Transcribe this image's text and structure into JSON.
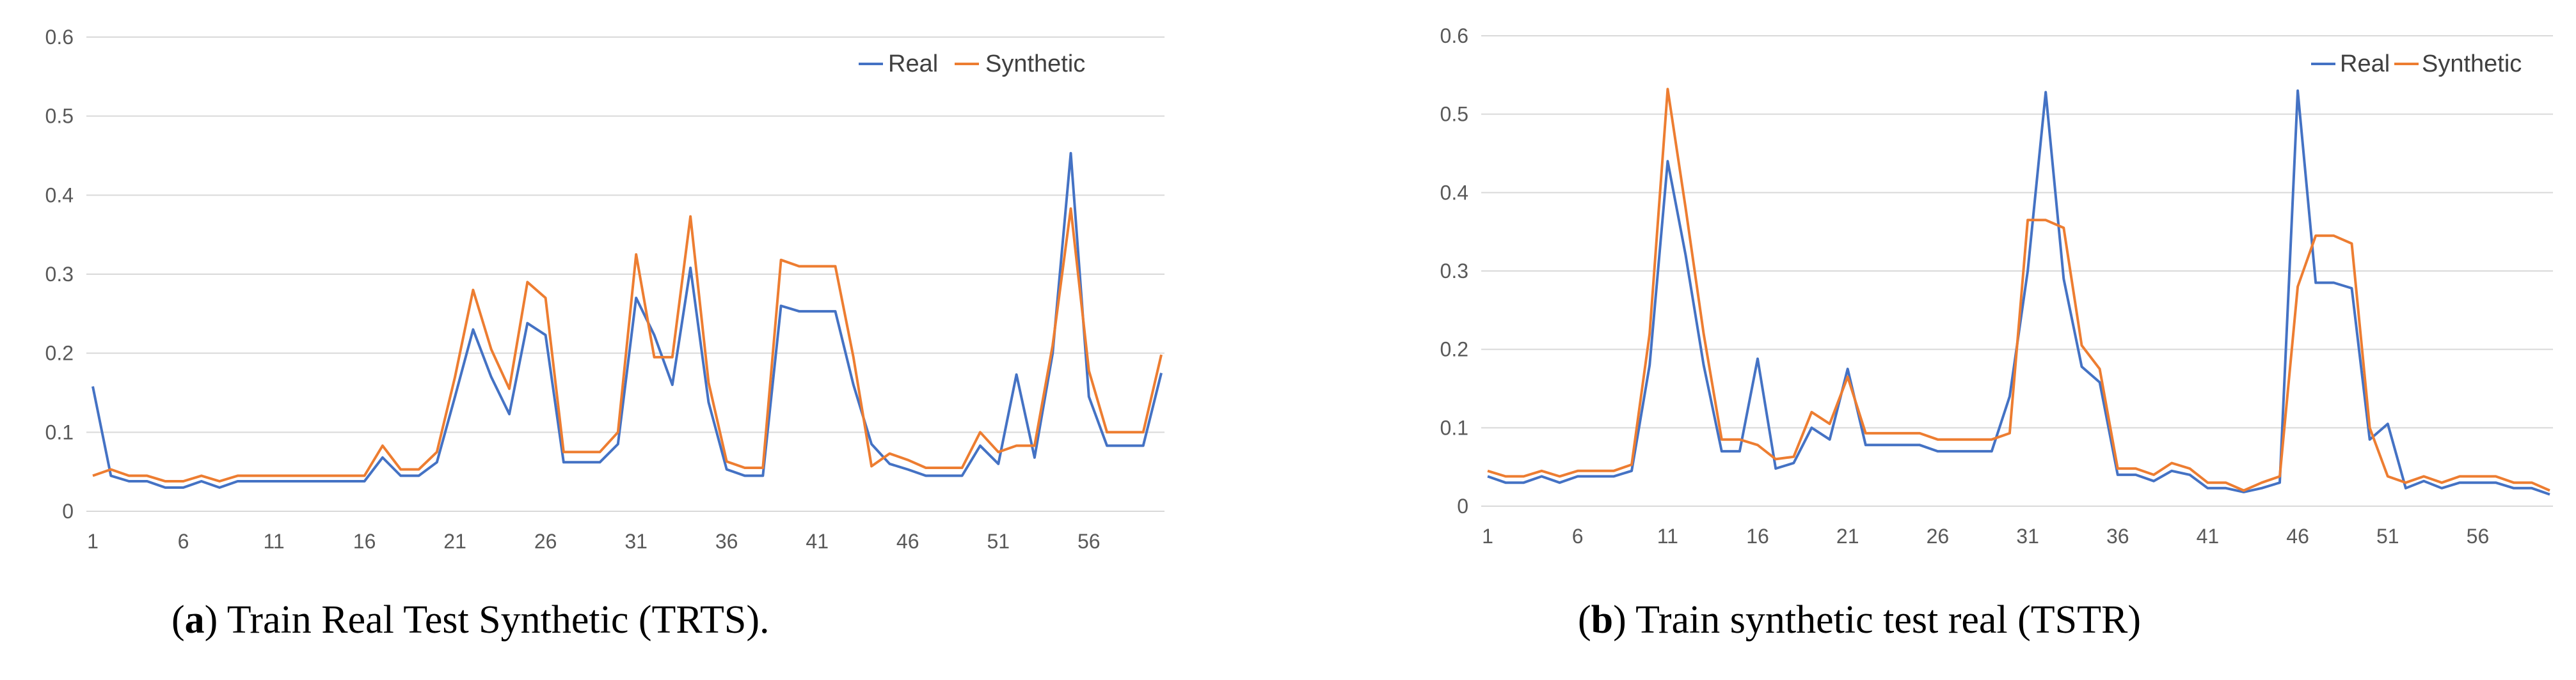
{
  "colors": {
    "real": "#4472c4",
    "synthetic": "#ed7d31",
    "grid": "#d9d9d9",
    "tick": "#595959"
  },
  "chart_data": [
    {
      "type": "line",
      "title": "",
      "xlabel": "",
      "ylabel": "",
      "ylim": [
        0,
        0.6
      ],
      "yticks": [
        "0",
        "0.1",
        "0.2",
        "0.3",
        "0.4",
        "0.5",
        "0.6"
      ],
      "xticks": [
        "1",
        "6",
        "11",
        "16",
        "21",
        "26",
        "31",
        "36",
        "41",
        "46",
        "51",
        "56"
      ],
      "legend_position": "top-right",
      "grid": true,
      "x": [
        1,
        2,
        3,
        4,
        5,
        6,
        7,
        8,
        9,
        10,
        11,
        12,
        13,
        14,
        15,
        16,
        17,
        18,
        19,
        20,
        21,
        22,
        23,
        24,
        25,
        26,
        27,
        28,
        29,
        30,
        31,
        32,
        33,
        34,
        35,
        36,
        37,
        38,
        39,
        40,
        41,
        42,
        43,
        44,
        45,
        46,
        47,
        48,
        49,
        50,
        51,
        52,
        53,
        54,
        55,
        56,
        57,
        58,
        59,
        60
      ],
      "series": [
        {
          "name": "Real",
          "values": [
            0.158,
            0.045,
            0.038,
            0.038,
            0.03,
            0.03,
            0.038,
            0.03,
            0.038,
            0.038,
            0.038,
            0.038,
            0.038,
            0.038,
            0.038,
            0.038,
            0.068,
            0.045,
            0.045,
            0.062,
            0.145,
            0.23,
            0.17,
            0.123,
            0.238,
            0.223,
            0.062,
            0.062,
            0.062,
            0.085,
            0.27,
            0.223,
            0.16,
            0.308,
            0.138,
            0.053,
            0.045,
            0.045,
            0.26,
            0.253,
            0.253,
            0.253,
            0.16,
            0.085,
            0.06,
            0.053,
            0.045,
            0.045,
            0.045,
            0.083,
            0.06,
            0.173,
            0.068,
            0.2,
            0.453,
            0.145,
            0.083,
            0.083,
            0.083,
            0.175
          ]
        },
        {
          "name": "Synthetic",
          "values": [
            0.045,
            0.053,
            0.045,
            0.045,
            0.038,
            0.038,
            0.045,
            0.038,
            0.045,
            0.045,
            0.045,
            0.045,
            0.045,
            0.045,
            0.045,
            0.045,
            0.083,
            0.053,
            0.053,
            0.075,
            0.17,
            0.28,
            0.205,
            0.155,
            0.29,
            0.27,
            0.075,
            0.075,
            0.075,
            0.1,
            0.325,
            0.195,
            0.195,
            0.373,
            0.163,
            0.063,
            0.055,
            0.055,
            0.318,
            0.31,
            0.31,
            0.31,
            0.195,
            0.057,
            0.073,
            0.065,
            0.055,
            0.055,
            0.055,
            0.1,
            0.075,
            0.083,
            0.083,
            0.21,
            0.383,
            0.178,
            0.1,
            0.1,
            0.1,
            0.198
          ]
        }
      ]
    },
    {
      "type": "line",
      "title": "",
      "xlabel": "",
      "ylabel": "",
      "ylim": [
        0,
        0.6
      ],
      "yticks": [
        "0",
        "0.1",
        "0.2",
        "0.3",
        "0.4",
        "0.5",
        "0.6"
      ],
      "xticks": [
        "1",
        "6",
        "11",
        "16",
        "21",
        "26",
        "31",
        "36",
        "41",
        "46",
        "51",
        "56"
      ],
      "legend_position": "top-right",
      "grid": true,
      "x": [
        1,
        2,
        3,
        4,
        5,
        6,
        7,
        8,
        9,
        10,
        11,
        12,
        13,
        14,
        15,
        16,
        17,
        18,
        19,
        20,
        21,
        22,
        23,
        24,
        25,
        26,
        27,
        28,
        29,
        30,
        31,
        32,
        33,
        34,
        35,
        36,
        37,
        38,
        39,
        40,
        41,
        42,
        43,
        44,
        45,
        46,
        47,
        48,
        49,
        50,
        51,
        52,
        53,
        54,
        55,
        56,
        57,
        58,
        59,
        60
      ],
      "series": [
        {
          "name": "Real",
          "values": [
            0.038,
            0.03,
            0.03,
            0.038,
            0.03,
            0.038,
            0.038,
            0.038,
            0.045,
            0.18,
            0.44,
            0.32,
            0.18,
            0.07,
            0.07,
            0.188,
            0.048,
            0.055,
            0.1,
            0.085,
            0.175,
            0.078,
            0.078,
            0.078,
            0.078,
            0.07,
            0.07,
            0.07,
            0.07,
            0.14,
            0.3,
            0.528,
            0.29,
            0.178,
            0.158,
            0.04,
            0.04,
            0.032,
            0.045,
            0.04,
            0.023,
            0.023,
            0.018,
            0.023,
            0.03,
            0.53,
            0.285,
            0.285,
            0.278,
            0.085,
            0.105,
            0.023,
            0.032,
            0.023,
            0.03,
            0.03,
            0.03,
            0.023,
            0.023,
            0.015
          ]
        },
        {
          "name": "Synthetic",
          "values": [
            0.045,
            0.038,
            0.038,
            0.045,
            0.038,
            0.045,
            0.045,
            0.045,
            0.053,
            0.22,
            0.532,
            0.38,
            0.22,
            0.085,
            0.085,
            0.078,
            0.06,
            0.063,
            0.12,
            0.105,
            0.165,
            0.093,
            0.093,
            0.093,
            0.093,
            0.085,
            0.085,
            0.085,
            0.085,
            0.093,
            0.365,
            0.365,
            0.355,
            0.205,
            0.175,
            0.048,
            0.048,
            0.04,
            0.055,
            0.048,
            0.03,
            0.03,
            0.02,
            0.03,
            0.038,
            0.28,
            0.345,
            0.345,
            0.335,
            0.1,
            0.038,
            0.03,
            0.038,
            0.03,
            0.038,
            0.038,
            0.038,
            0.03,
            0.03,
            0.02
          ]
        }
      ]
    }
  ],
  "captions": [
    {
      "label": "a",
      "text": " Train Real Test Synthetic (TRTS)."
    },
    {
      "label": "b",
      "text": " Train synthetic test real (TSTR)"
    }
  ]
}
